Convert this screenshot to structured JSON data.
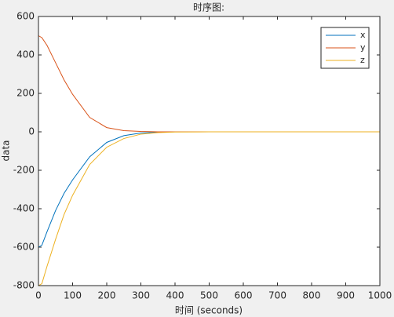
{
  "chart_data": {
    "type": "line",
    "title": "时序图:",
    "x_label": "时间 (seconds)",
    "y_label": "data",
    "x": [
      0,
      10,
      25,
      50,
      75,
      100,
      150,
      200,
      250,
      300,
      350,
      400,
      500,
      600,
      700,
      800,
      900,
      1000
    ],
    "series": [
      {
        "name": "x",
        "color": "#0072bd",
        "values": [
          -600,
          -590,
          -520,
          -410,
          -320,
          -250,
          -130,
          -55,
          -20,
          -6,
          -2,
          0,
          0,
          0,
          0,
          0,
          0,
          0
        ]
      },
      {
        "name": "y",
        "color": "#d95319",
        "values": [
          500,
          490,
          450,
          360,
          270,
          195,
          75,
          22,
          6,
          2,
          0,
          0,
          0,
          0,
          0,
          0,
          0,
          0
        ]
      },
      {
        "name": "z",
        "color": "#edb120",
        "values": [
          -800,
          -790,
          -700,
          -560,
          -430,
          -330,
          -170,
          -80,
          -35,
          -12,
          -4,
          -1,
          0,
          0,
          0,
          0,
          0,
          0
        ]
      }
    ],
    "xlim": [
      0,
      1000
    ],
    "xticks": [
      0,
      100,
      200,
      300,
      400,
      500,
      600,
      700,
      800,
      900,
      1000
    ],
    "ylim": [
      -800,
      600
    ],
    "yticks": [
      -800,
      -600,
      -400,
      -200,
      0,
      200,
      400,
      600
    ],
    "legend": "upper right"
  }
}
